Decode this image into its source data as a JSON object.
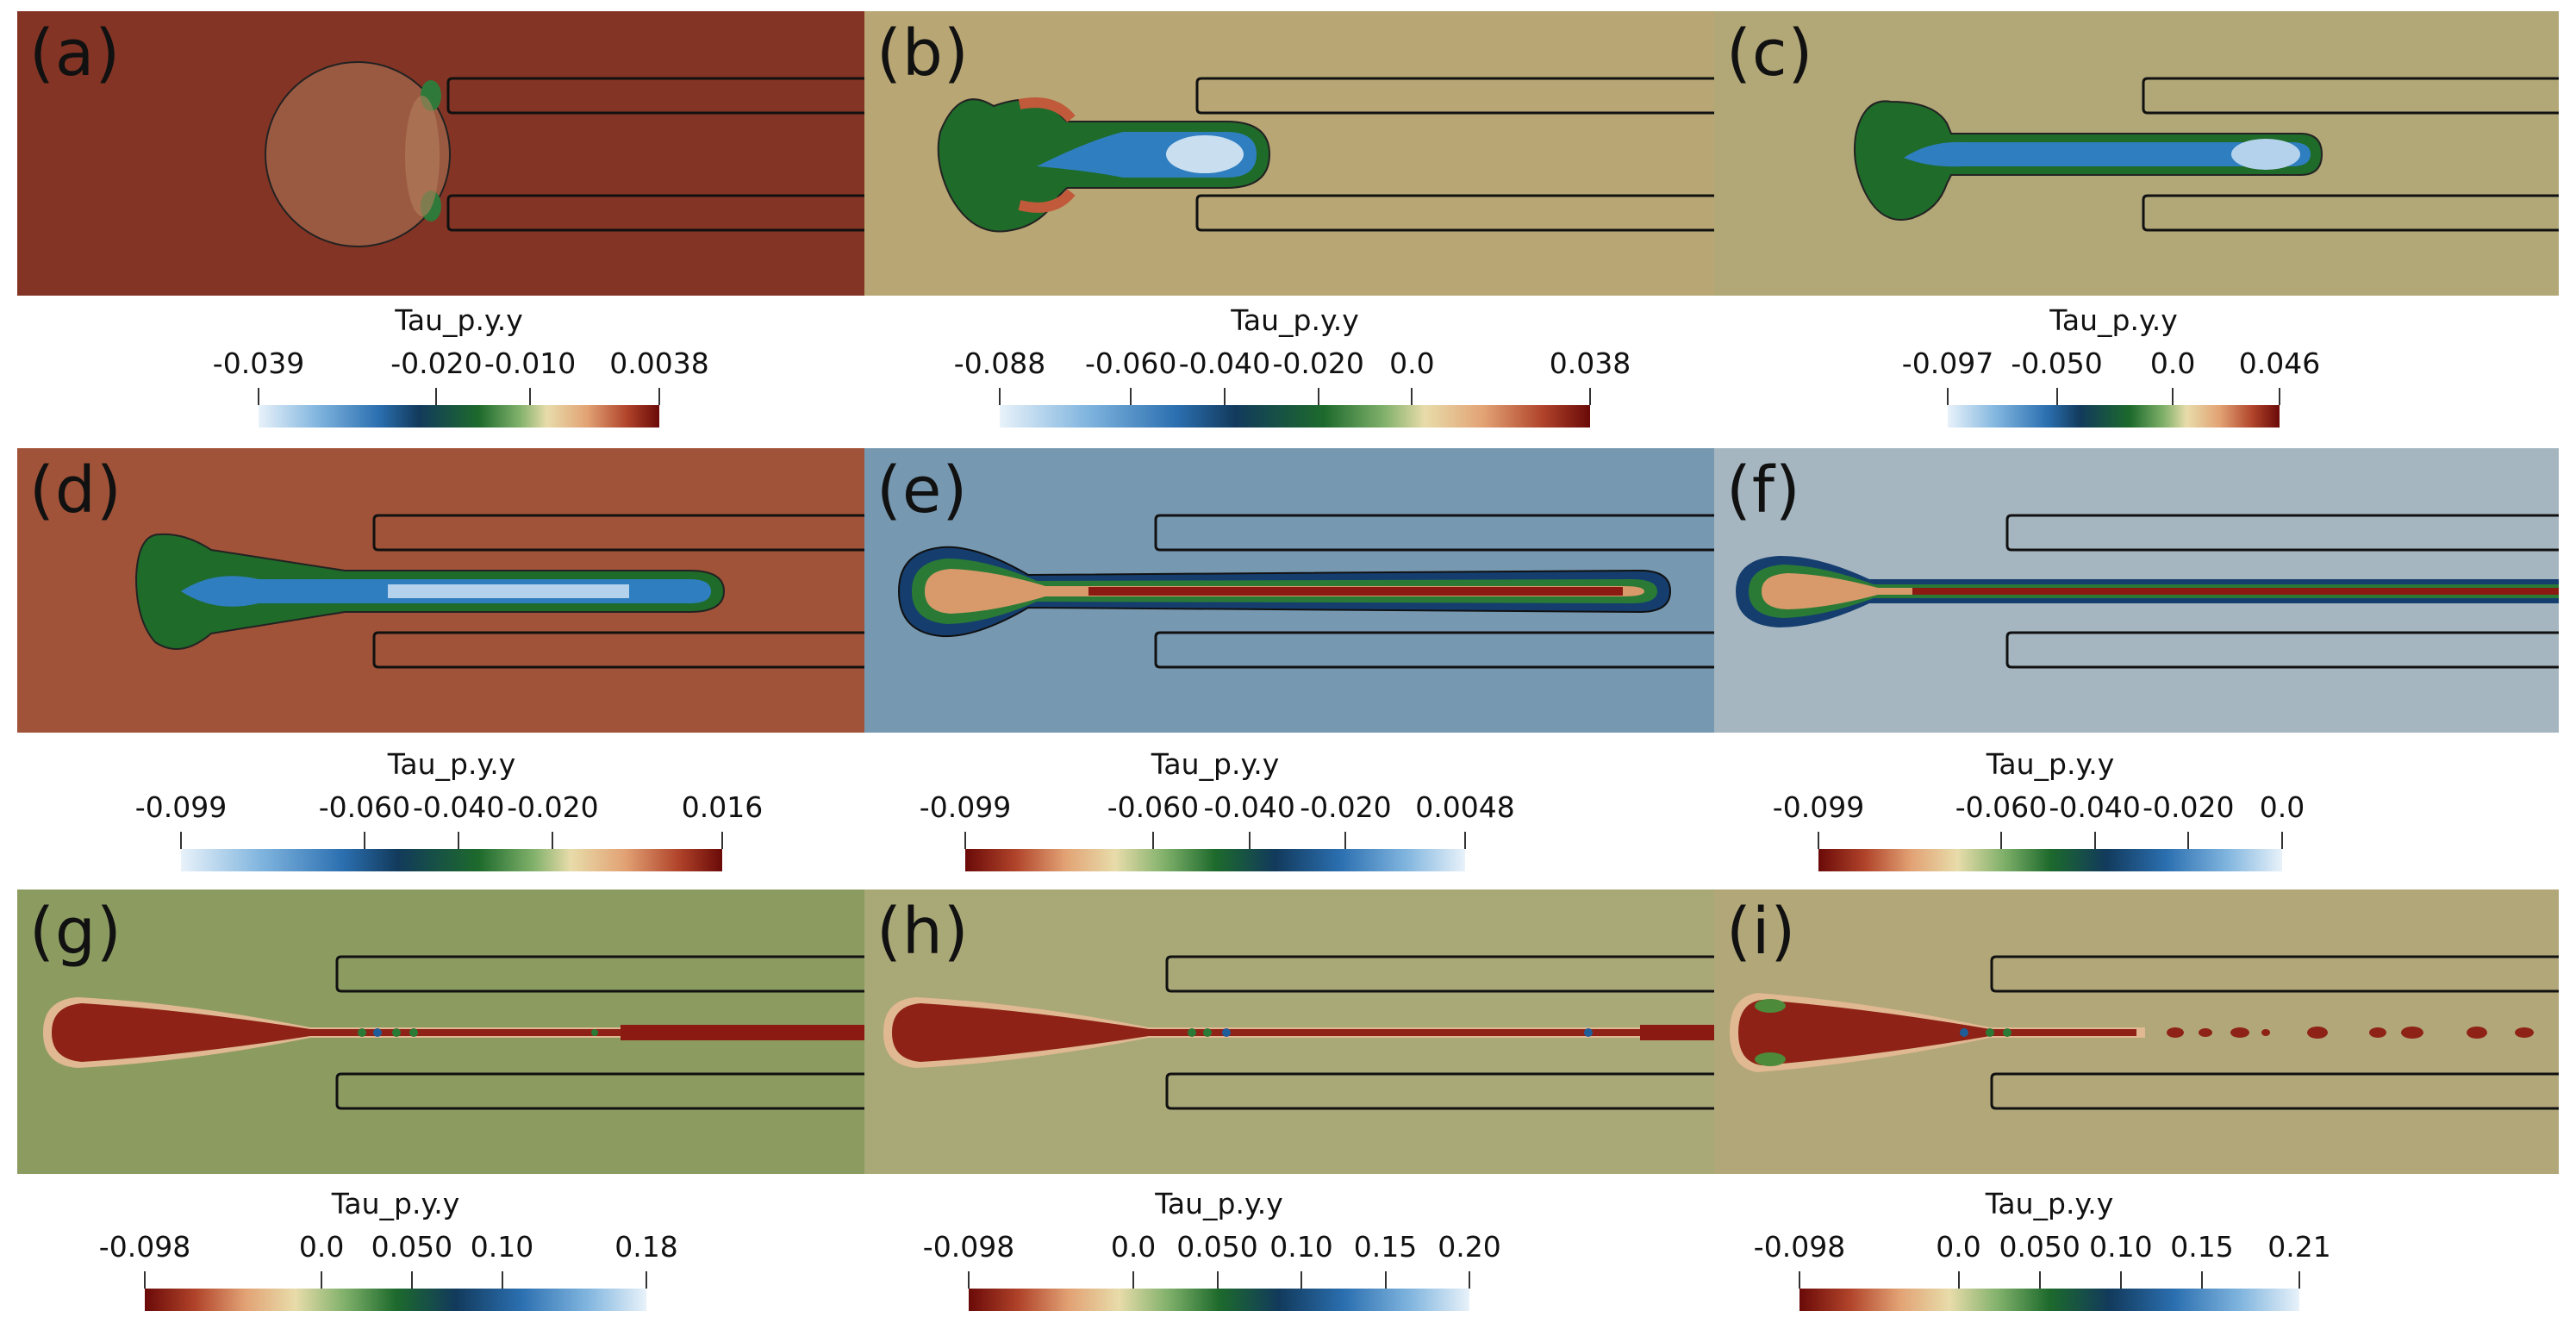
{
  "figure": {
    "panels": [
      {
        "label": "(a)",
        "bg": "#843424",
        "colorbar": {
          "title": "Tau_p.y.y",
          "ticks": [
            "-0.039",
            "-0.020",
            "-0.010",
            "0.0038"
          ],
          "min": -0.039,
          "max": 0.0038,
          "tick_values": [
            -0.039,
            -0.02,
            -0.01,
            0.0038
          ],
          "colormap": "blue-green-red"
        }
      },
      {
        "label": "(b)",
        "bg": "#b8a674",
        "colorbar": {
          "title": "Tau_p.y.y",
          "ticks": [
            "-0.088",
            "-0.060",
            "-0.040",
            "-0.020",
            "0.0",
            "0.038"
          ],
          "min": -0.088,
          "max": 0.038,
          "tick_values": [
            -0.088,
            -0.06,
            -0.04,
            -0.02,
            0.0,
            0.038
          ],
          "colormap": "blue-green-red"
        }
      },
      {
        "label": "(c)",
        "bg": "#b1a777",
        "colorbar": {
          "title": "Tau_p.y.y",
          "ticks": [
            "-0.097",
            "-0.050",
            "0.0",
            "0.046"
          ],
          "min": -0.097,
          "max": 0.046,
          "tick_values": [
            -0.097,
            -0.05,
            0.0,
            0.046
          ],
          "colormap": "blue-green-red"
        }
      },
      {
        "label": "(d)",
        "bg": "#a05338",
        "colorbar": {
          "title": "Tau_p.y.y",
          "ticks": [
            "-0.099",
            "-0.060",
            "-0.040",
            "-0.020",
            "0.016"
          ],
          "min": -0.099,
          "max": 0.016,
          "tick_values": [
            -0.099,
            -0.06,
            -0.04,
            -0.02,
            0.016
          ],
          "colormap": "blue-green-red"
        }
      },
      {
        "label": "(e)",
        "bg": "#7698b1",
        "colorbar": {
          "title": "Tau_p.y.y",
          "ticks": [
            "-0.099",
            "-0.060",
            "-0.040",
            "-0.020",
            "0.0048"
          ],
          "min": -0.099,
          "max": 0.0048,
          "tick_values": [
            -0.099,
            -0.06,
            -0.04,
            -0.02,
            0.0048
          ],
          "colormap": "red-green-blue"
        }
      },
      {
        "label": "(f)",
        "bg": "#a6b6c0",
        "colorbar": {
          "title": "Tau_p.y.y",
          "ticks": [
            "-0.099",
            "-0.060",
            "-0.040",
            "-0.020",
            "0.0"
          ],
          "min": -0.099,
          "max": 0.0,
          "tick_values": [
            -0.099,
            -0.06,
            -0.04,
            -0.02,
            0.0
          ],
          "colormap": "red-green-blue"
        }
      },
      {
        "label": "(g)",
        "bg": "#8c9c61",
        "colorbar": {
          "title": "Tau_p.y.y",
          "ticks": [
            "-0.098",
            "0.0",
            "0.050",
            "0.10",
            "0.18"
          ],
          "min": -0.098,
          "max": 0.18,
          "tick_values": [
            -0.098,
            0.0,
            0.05,
            0.1,
            0.18
          ],
          "colormap": "red-green-blue"
        }
      },
      {
        "label": "(h)",
        "bg": "#a9a877",
        "colorbar": {
          "title": "Tau_p.y.y",
          "ticks": [
            "-0.098",
            "0.0",
            "0.050",
            "0.10",
            "0.15",
            "0.20"
          ],
          "min": -0.098,
          "max": 0.2,
          "tick_values": [
            -0.098,
            0.0,
            0.05,
            0.1,
            0.15,
            0.2
          ],
          "colormap": "red-green-blue"
        }
      },
      {
        "label": "(i)",
        "bg": "#b2a779",
        "colorbar": {
          "title": "Tau_p.y.y",
          "ticks": [
            "-0.098",
            "0.0",
            "0.050",
            "0.10",
            "0.15",
            "0.21"
          ],
          "min": -0.098,
          "max": 0.21,
          "tick_values": [
            -0.098,
            0.0,
            0.05,
            0.1,
            0.15,
            0.21
          ],
          "colormap": "red-green-blue"
        }
      }
    ]
  }
}
